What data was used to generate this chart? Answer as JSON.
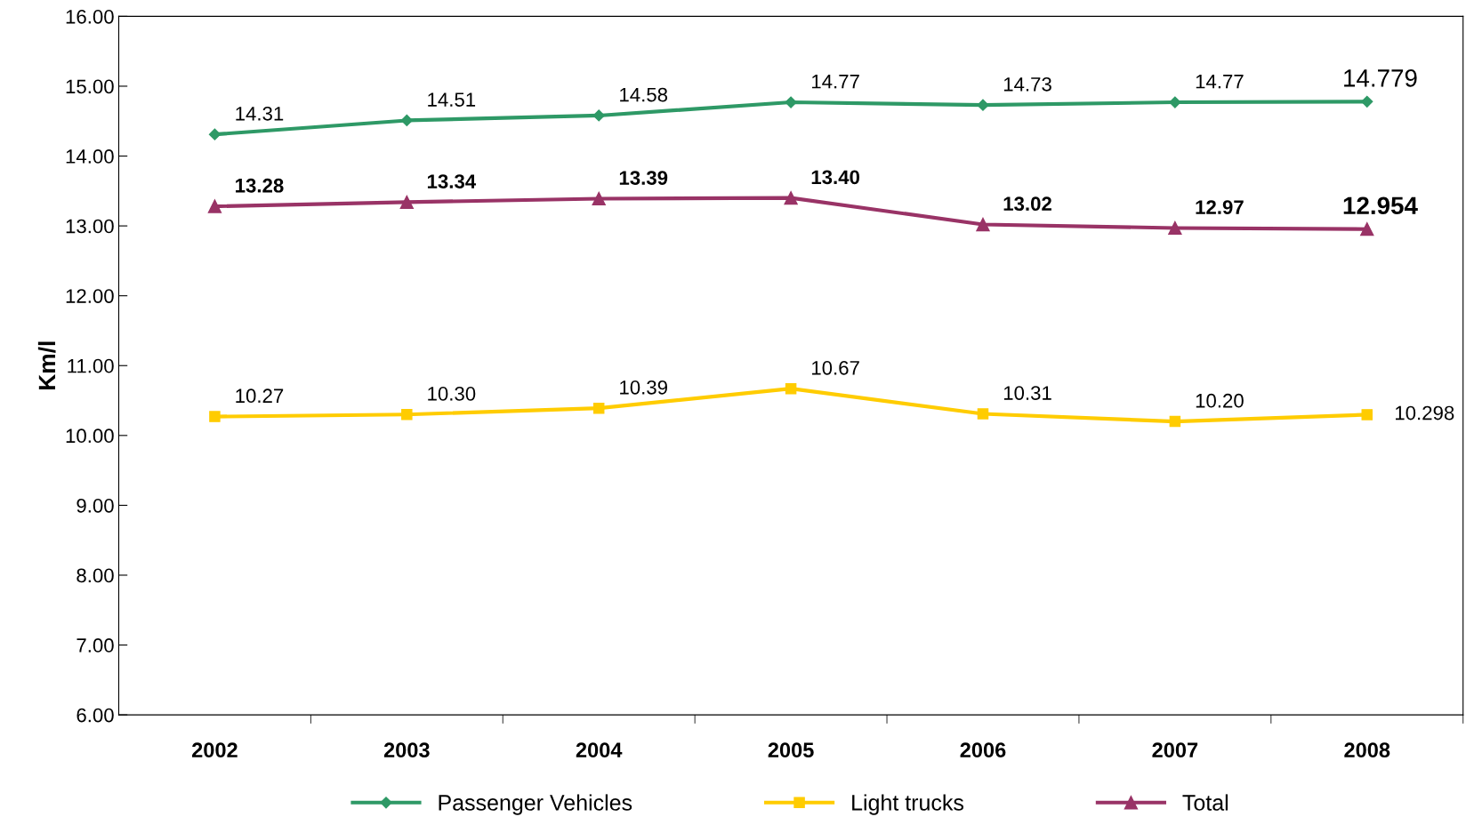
{
  "chart_data": {
    "type": "line",
    "ylabel": "Km/l",
    "categories": [
      "2002",
      "2003",
      "2004",
      "2005",
      "2006",
      "2007",
      "2008"
    ],
    "series": [
      {
        "name": "Passenger Vehicles",
        "color": "#2e9966",
        "marker": "diamond",
        "values": [
          14.31,
          14.51,
          14.58,
          14.77,
          14.73,
          14.77,
          14.779
        ],
        "value_labels": [
          "14.31",
          "14.51",
          "14.58",
          "14.77",
          "14.73",
          "14.77",
          "14.779"
        ]
      },
      {
        "name": "Light trucks",
        "color": "#ffcc00",
        "marker": "square",
        "values": [
          10.27,
          10.3,
          10.39,
          10.67,
          10.31,
          10.2,
          10.298
        ],
        "value_labels": [
          "10.27",
          "10.30",
          "10.39",
          "10.67",
          "10.31",
          "10.20",
          "10.298"
        ]
      },
      {
        "name": "Total",
        "color": "#993366",
        "marker": "triangle",
        "values": [
          13.28,
          13.34,
          13.39,
          13.4,
          13.02,
          12.97,
          12.954
        ],
        "value_labels": [
          "13.28",
          "13.34",
          "13.39",
          "13.40",
          "13.02",
          "12.97",
          "12.954"
        ]
      }
    ],
    "ylim": [
      6,
      16
    ],
    "yticks": [
      {
        "value": 6,
        "label": "6.00"
      },
      {
        "value": 7,
        "label": "7.00"
      },
      {
        "value": 8,
        "label": "8.00"
      },
      {
        "value": 9,
        "label": "9.00"
      },
      {
        "value": 10,
        "label": "10.00"
      },
      {
        "value": 11,
        "label": "11.00"
      },
      {
        "value": 12,
        "label": "12.00"
      },
      {
        "value": 13,
        "label": "13.00"
      },
      {
        "value": 14,
        "label": "14.00"
      },
      {
        "value": 15,
        "label": "15.00"
      },
      {
        "value": 16,
        "label": "16.00"
      }
    ],
    "grid": false,
    "legend": "bottom",
    "line_style": "solid"
  }
}
